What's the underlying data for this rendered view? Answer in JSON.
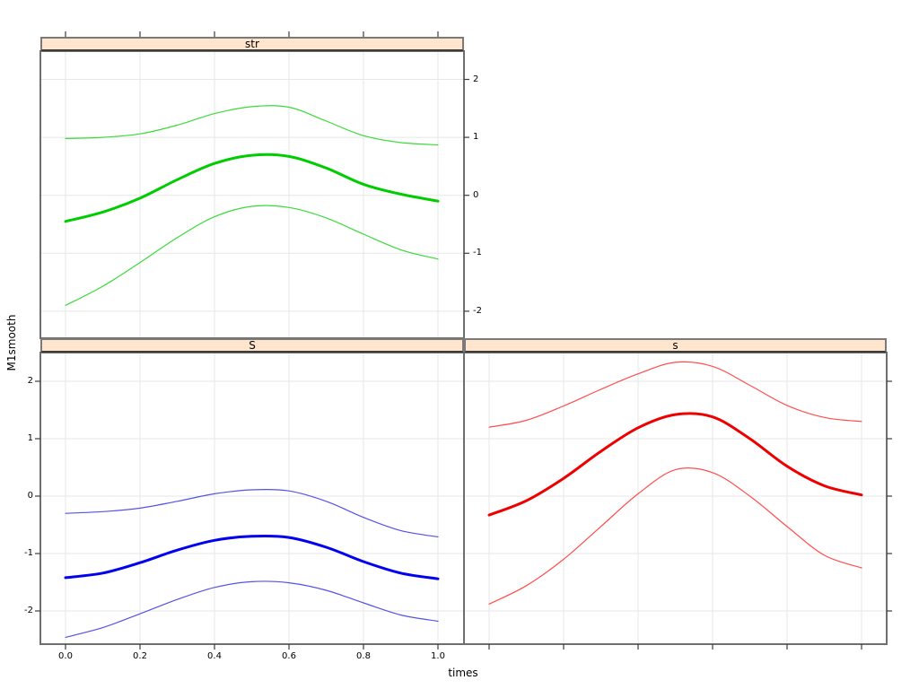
{
  "chart_data": {
    "type": "line",
    "title": "",
    "xlabel": "times",
    "ylabel": "M1smooth",
    "grid": true,
    "legend": "none",
    "xlim": [
      -0.0675,
      1.07
    ],
    "ylim": [
      -2.5,
      2.5
    ],
    "x_ticks": {
      "values": [
        0.0,
        0.2,
        0.4,
        0.6,
        0.8,
        1.0
      ],
      "labels": [
        "0.0",
        "0.2",
        "0.4",
        "0.6",
        "0.8",
        "1.0"
      ]
    },
    "y_ticks": {
      "values": [
        2,
        1,
        0,
        -1,
        -2
      ],
      "labels": [
        "2",
        "1",
        "0",
        "-1",
        "-2"
      ]
    },
    "colors": {
      "grid": "#e7e7e7",
      "panel_border": "#6e6e6e",
      "tick": "#3c3c3c",
      "strip_fill": "#ffe5cc"
    },
    "x": [
      0,
      0.1,
      0.2,
      0.3,
      0.4,
      0.5,
      0.6,
      0.7,
      0.8,
      0.9,
      1.0
    ],
    "panels": [
      {
        "strip": "str",
        "pos": "top-left",
        "color": "#00CD00",
        "band_color": "#3ADA3A",
        "series": [
          "upper-ci",
          "mean",
          "lower-ci"
        ],
        "mean": [
          -0.45,
          -0.29,
          -0.05,
          0.27,
          0.55,
          0.69,
          0.67,
          0.47,
          0.19,
          0.02,
          -0.1
        ],
        "upper": [
          0.98,
          1.0,
          1.06,
          1.21,
          1.41,
          1.53,
          1.52,
          1.28,
          1.03,
          0.91,
          0.87
        ],
        "lower": [
          -1.9,
          -1.57,
          -1.16,
          -0.73,
          -0.37,
          -0.19,
          -0.21,
          -0.39,
          -0.67,
          -0.94,
          -1.1
        ]
      },
      {
        "strip": "S",
        "pos": "bottom-left",
        "color": "#0000EE",
        "band_color": "#5353E6",
        "series": [
          "upper-ci",
          "mean",
          "lower-ci"
        ],
        "mean": [
          -1.42,
          -1.34,
          -1.16,
          -0.94,
          -0.77,
          -0.7,
          -0.72,
          -0.89,
          -1.14,
          -1.34,
          -1.44
        ],
        "upper": [
          -0.3,
          -0.27,
          -0.21,
          -0.09,
          0.04,
          0.11,
          0.09,
          -0.09,
          -0.37,
          -0.6,
          -0.71
        ],
        "lower": [
          -2.46,
          -2.29,
          -2.05,
          -1.8,
          -1.59,
          -1.49,
          -1.51,
          -1.64,
          -1.86,
          -2.07,
          -2.18
        ]
      },
      {
        "strip": "s",
        "pos": "bottom-right",
        "color": "#EE0000",
        "band_color": "#FF4D4D",
        "series": [
          "upper-ci",
          "mean",
          "lower-ci"
        ],
        "mean": [
          -0.33,
          -0.08,
          0.31,
          0.78,
          1.19,
          1.42,
          1.38,
          1.0,
          0.52,
          0.18,
          0.02
        ],
        "upper": [
          1.2,
          1.32,
          1.57,
          1.86,
          2.13,
          2.33,
          2.26,
          1.93,
          1.58,
          1.37,
          1.3
        ],
        "lower": [
          -1.88,
          -1.56,
          -1.1,
          -0.53,
          0.04,
          0.46,
          0.41,
          0.0,
          -0.53,
          -1.03,
          -1.25
        ]
      }
    ]
  }
}
